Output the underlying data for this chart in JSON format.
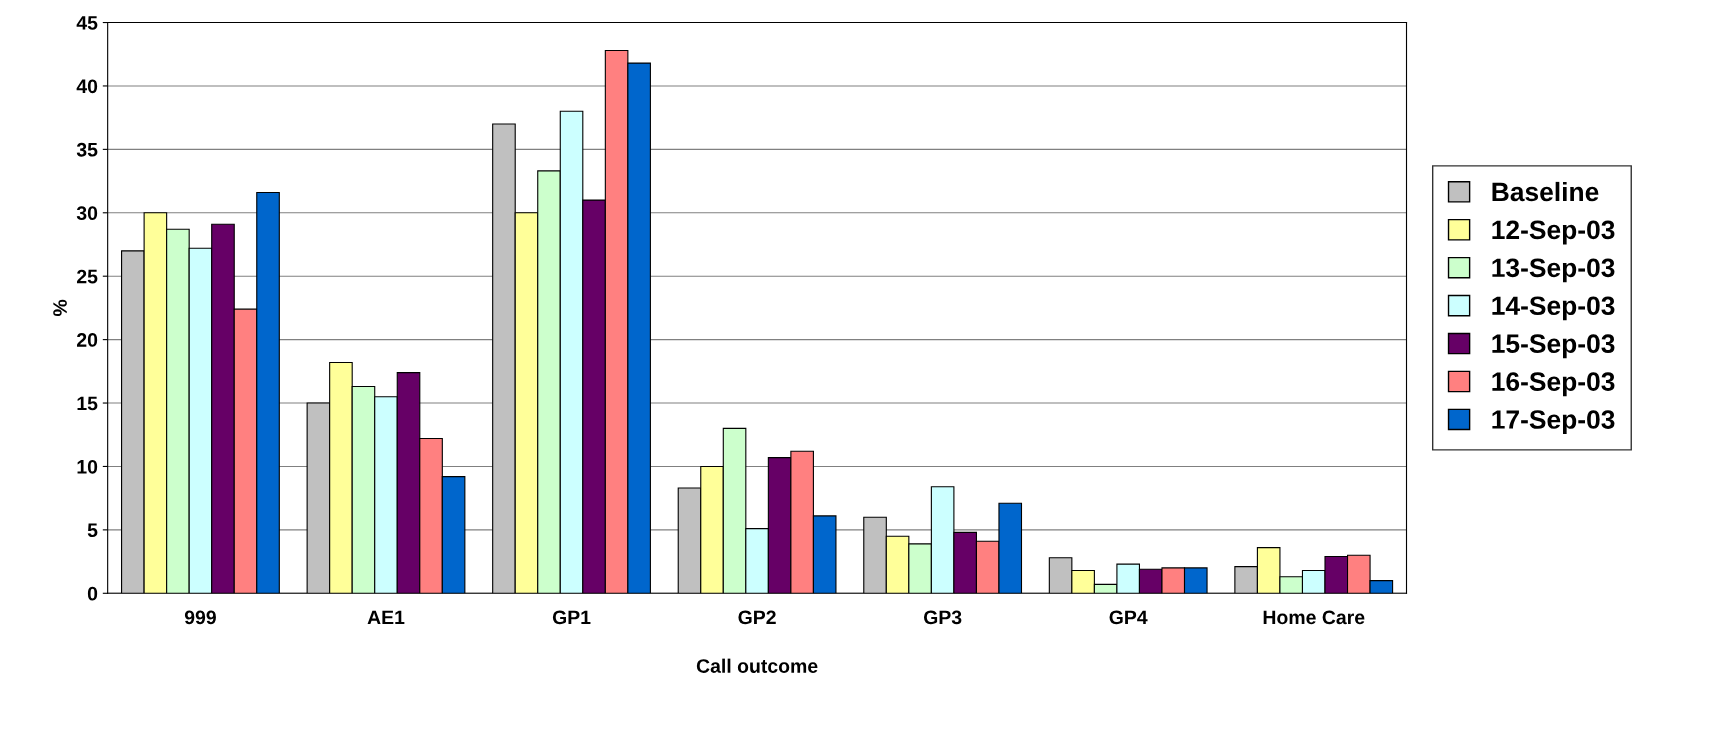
{
  "chart_data": {
    "type": "bar",
    "xlabel": "Call outcome",
    "ylabel": "%",
    "categories": [
      "999",
      "AE1",
      "GP1",
      "GP2",
      "GP3",
      "GP4",
      "Home Care"
    ],
    "series": [
      {
        "name": "Baseline",
        "color": "#c0c0c0",
        "values": [
          27.0,
          15.0,
          37.0,
          8.3,
          6.0,
          2.8,
          2.1
        ]
      },
      {
        "name": "12-Sep-03",
        "color": "#ffff99",
        "values": [
          30.0,
          18.2,
          30.0,
          10.0,
          4.5,
          1.8,
          3.6
        ]
      },
      {
        "name": "13-Sep-03",
        "color": "#ccffcc",
        "values": [
          28.7,
          16.3,
          33.3,
          13.0,
          3.9,
          0.7,
          1.3
        ]
      },
      {
        "name": "14-Sep-03",
        "color": "#ccffff",
        "values": [
          27.2,
          15.5,
          38.0,
          5.1,
          8.4,
          2.3,
          1.8
        ]
      },
      {
        "name": "15-Sep-03",
        "color": "#660066",
        "values": [
          29.1,
          17.4,
          31.0,
          10.7,
          4.8,
          1.9,
          2.9
        ]
      },
      {
        "name": "16-Sep-03",
        "color": "#ff8080",
        "values": [
          22.4,
          12.2,
          42.8,
          11.2,
          4.1,
          2.0,
          3.0
        ]
      },
      {
        "name": "17-Sep-03",
        "color": "#0066cc",
        "values": [
          31.6,
          9.2,
          41.8,
          6.1,
          7.1,
          2.0,
          1.0
        ]
      }
    ],
    "ylim": [
      0,
      45
    ],
    "yticks": [
      0,
      5,
      10,
      15,
      20,
      25,
      30,
      35,
      40,
      45
    ],
    "grid": "y",
    "legend": "right"
  }
}
